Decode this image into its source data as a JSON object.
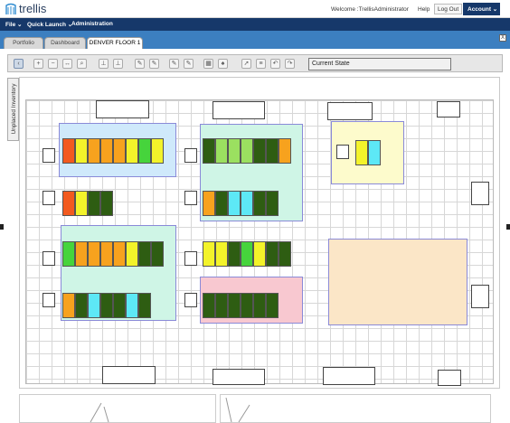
{
  "header": {
    "logo_text": "trellis",
    "welcome": "Welcome :TrellisAdministrator",
    "help": "Help",
    "logout": "Log Out",
    "account": "Account ⌄"
  },
  "menu": [
    "File ⌄",
    "Quick Launch ⌄",
    "Administration"
  ],
  "tabs": [
    "Portfolio",
    "Dashboard",
    "DENVER FLOOR 1"
  ],
  "tab_close": "X",
  "toolbar": {
    "state_label": "Current State"
  },
  "sidebar": {
    "unplaced_label": "Unplaced Inventory"
  },
  "colors": {
    "brand": "#16386a",
    "tabbar": "#3c7fc0",
    "red": "#f25a1f",
    "yellow": "#f3f32a",
    "orange": "#f7a21e",
    "green": "#46d43c",
    "lightgreen": "#9be060",
    "darkgreen": "#2e5d12",
    "cyan": "#5de8f6",
    "zone_blue": "#cfe9fb",
    "zone_mint": "#cff5e6",
    "zone_yellow": "#fdfbcc",
    "zone_pink": "#f8c8d0",
    "zone_peach": "#fbe6c7"
  },
  "rows": [
    [
      "red",
      "yellow",
      "orange",
      "orange",
      "orange",
      "yellow",
      "green",
      "yellow"
    ],
    [
      "red",
      "yellow",
      "darkgreen",
      "darkgreen"
    ],
    [
      "green",
      "orange",
      "orange",
      "orange",
      "orange",
      "yellow",
      "darkgreen",
      "darkgreen"
    ],
    [
      "orange",
      "darkgreen",
      "cyan",
      "darkgreen",
      "darkgreen",
      "cyan",
      "darkgreen"
    ],
    [
      "darkgreen",
      "lightgreen",
      "lightgreen",
      "lightgreen",
      "darkgreen",
      "darkgreen",
      "orange"
    ],
    [
      "orange",
      "darkgreen",
      "cyan",
      "cyan",
      "darkgreen",
      "darkgreen"
    ],
    [
      "yellow",
      "yellow",
      "darkgreen",
      "green",
      "yellow",
      "darkgreen",
      "darkgreen"
    ],
    [
      "darkgreen",
      "darkgreen",
      "darkgreen",
      "darkgreen",
      "darkgreen",
      "darkgreen"
    ],
    [
      "yellow",
      "cyan"
    ]
  ]
}
